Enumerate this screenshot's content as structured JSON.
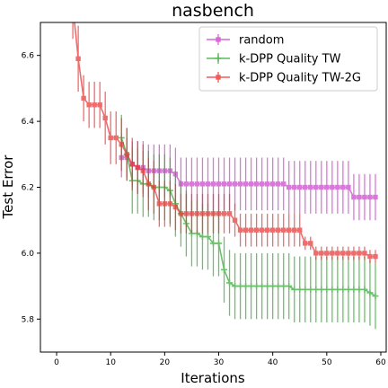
{
  "chart_data": {
    "type": "line",
    "title": "nasbench",
    "xlabel": "Iterations",
    "ylabel": "Test Error",
    "xlim": [
      -3,
      61
    ],
    "ylim": [
      5.7,
      6.7
    ],
    "xticks": [
      0,
      10,
      20,
      30,
      40,
      50,
      60
    ],
    "yticks": [
      5.8,
      6.0,
      6.2,
      6.4,
      6.6
    ],
    "legend_position": "top-right",
    "series": [
      {
        "name": "random",
        "color": "#cc44cc",
        "marker": "square",
        "x": [
          12,
          13,
          14,
          15,
          16,
          17,
          18,
          19,
          20,
          21,
          22,
          23,
          24,
          25,
          26,
          27,
          28,
          29,
          30,
          31,
          32,
          33,
          34,
          35,
          36,
          37,
          38,
          39,
          40,
          41,
          42,
          43,
          44,
          45,
          46,
          47,
          48,
          49,
          50,
          51,
          52,
          53,
          54,
          55,
          56,
          57,
          58,
          59
        ],
        "y": [
          6.29,
          6.29,
          6.27,
          6.26,
          6.26,
          6.25,
          6.25,
          6.25,
          6.25,
          6.25,
          6.24,
          6.21,
          6.21,
          6.21,
          6.21,
          6.21,
          6.21,
          6.21,
          6.21,
          6.21,
          6.21,
          6.21,
          6.21,
          6.21,
          6.21,
          6.21,
          6.21,
          6.21,
          6.21,
          6.21,
          6.21,
          6.2,
          6.2,
          6.2,
          6.2,
          6.2,
          6.2,
          6.2,
          6.2,
          6.2,
          6.2,
          6.2,
          6.2,
          6.17,
          6.17,
          6.17,
          6.17,
          6.17
        ],
        "err": [
          0.06,
          0.06,
          0.07,
          0.08,
          0.08,
          0.08,
          0.08,
          0.08,
          0.08,
          0.08,
          0.08,
          0.08,
          0.08,
          0.08,
          0.08,
          0.08,
          0.08,
          0.08,
          0.08,
          0.08,
          0.08,
          0.08,
          0.08,
          0.08,
          0.08,
          0.08,
          0.08,
          0.08,
          0.08,
          0.08,
          0.08,
          0.08,
          0.08,
          0.08,
          0.08,
          0.08,
          0.08,
          0.08,
          0.08,
          0.08,
          0.08,
          0.08,
          0.08,
          0.07,
          0.07,
          0.07,
          0.07,
          0.07
        ]
      },
      {
        "name": "k-DPP Quality TW",
        "color": "#33aa33",
        "marker": "plus",
        "x": [
          12,
          13,
          14,
          15,
          16,
          17,
          18,
          19,
          20,
          21,
          22,
          23,
          24,
          25,
          26,
          27,
          28,
          29,
          30,
          31,
          32,
          33,
          34,
          35,
          36,
          37,
          38,
          39,
          40,
          41,
          42,
          43,
          44,
          45,
          46,
          47,
          48,
          49,
          50,
          51,
          52,
          53,
          54,
          55,
          56,
          57,
          58,
          59
        ],
        "y": [
          6.35,
          6.3,
          6.22,
          6.22,
          6.21,
          6.21,
          6.2,
          6.2,
          6.2,
          6.19,
          6.15,
          6.12,
          6.09,
          6.06,
          6.06,
          6.05,
          6.05,
          6.03,
          6.03,
          5.95,
          5.91,
          5.9,
          5.9,
          5.9,
          5.9,
          5.9,
          5.9,
          5.9,
          5.9,
          5.9,
          5.9,
          5.9,
          5.89,
          5.89,
          5.89,
          5.89,
          5.89,
          5.89,
          5.89,
          5.89,
          5.89,
          5.89,
          5.89,
          5.89,
          5.89,
          5.89,
          5.88,
          5.87
        ],
        "err": [
          0.07,
          0.08,
          0.1,
          0.1,
          0.1,
          0.1,
          0.1,
          0.1,
          0.1,
          0.1,
          0.1,
          0.1,
          0.1,
          0.1,
          0.1,
          0.1,
          0.1,
          0.1,
          0.1,
          0.1,
          0.1,
          0.1,
          0.1,
          0.1,
          0.1,
          0.1,
          0.1,
          0.1,
          0.1,
          0.1,
          0.1,
          0.1,
          0.1,
          0.1,
          0.1,
          0.1,
          0.1,
          0.1,
          0.1,
          0.1,
          0.1,
          0.1,
          0.1,
          0.1,
          0.1,
          0.1,
          0.1,
          0.1
        ]
      },
      {
        "name": "k-DPP Quality TW-2G",
        "color": "#ee3333",
        "marker": "square",
        "x": [
          3,
          4,
          5,
          6,
          7,
          8,
          9,
          10,
          11,
          12,
          13,
          14,
          15,
          16,
          17,
          18,
          19,
          20,
          21,
          22,
          23,
          24,
          25,
          26,
          27,
          28,
          29,
          30,
          31,
          32,
          33,
          34,
          35,
          36,
          37,
          38,
          39,
          40,
          41,
          42,
          43,
          44,
          45,
          46,
          47,
          48,
          49,
          50,
          51,
          52,
          53,
          54,
          55,
          56,
          57,
          58,
          59
        ],
        "y": [
          6.75,
          6.59,
          6.47,
          6.45,
          6.45,
          6.45,
          6.41,
          6.35,
          6.35,
          6.33,
          6.3,
          6.27,
          6.26,
          6.25,
          6.21,
          6.2,
          6.15,
          6.15,
          6.15,
          6.14,
          6.12,
          6.12,
          6.12,
          6.12,
          6.12,
          6.12,
          6.12,
          6.12,
          6.12,
          6.12,
          6.1,
          6.07,
          6.07,
          6.07,
          6.07,
          6.07,
          6.07,
          6.07,
          6.07,
          6.07,
          6.07,
          6.07,
          6.07,
          6.03,
          6.03,
          6.0,
          6.0,
          6.0,
          6.0,
          6.0,
          6.0,
          6.0,
          6.0,
          6.0,
          6.0,
          5.99,
          5.99
        ],
        "err": [
          0.1,
          0.1,
          0.07,
          0.07,
          0.07,
          0.07,
          0.08,
          0.08,
          0.08,
          0.08,
          0.08,
          0.08,
          0.08,
          0.08,
          0.08,
          0.08,
          0.07,
          0.07,
          0.07,
          0.07,
          0.06,
          0.06,
          0.06,
          0.06,
          0.06,
          0.06,
          0.06,
          0.06,
          0.06,
          0.06,
          0.05,
          0.05,
          0.05,
          0.05,
          0.05,
          0.05,
          0.05,
          0.05,
          0.05,
          0.05,
          0.05,
          0.05,
          0.05,
          0.02,
          0.02,
          0.02,
          0.02,
          0.02,
          0.02,
          0.02,
          0.02,
          0.02,
          0.02,
          0.02,
          0.02,
          0.02,
          0.02
        ]
      }
    ]
  }
}
